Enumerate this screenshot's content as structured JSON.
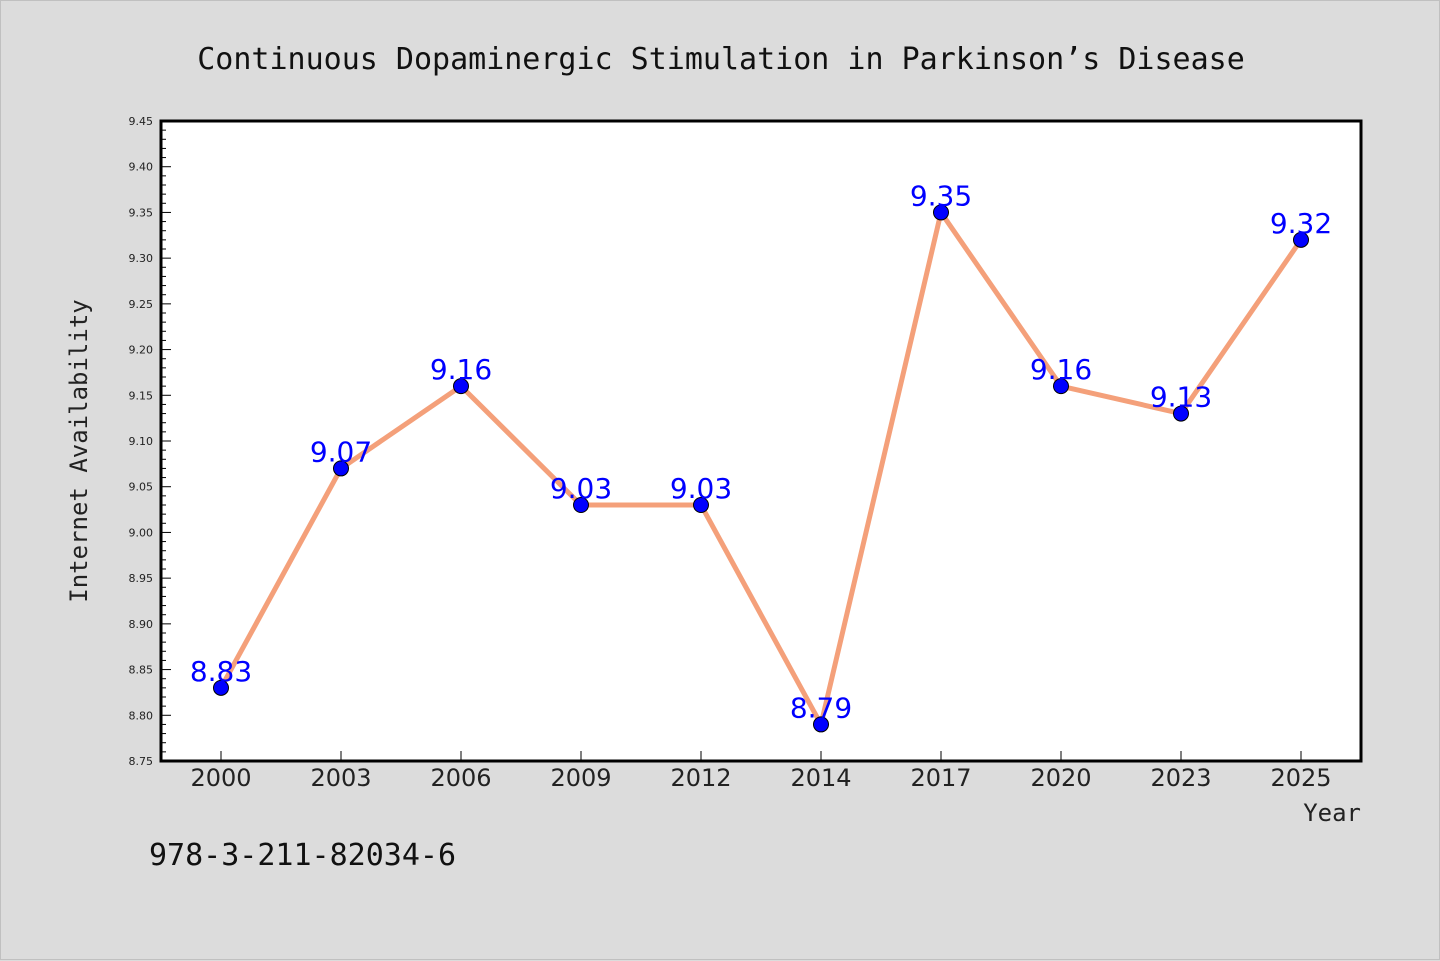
{
  "chart_data": {
    "type": "line",
    "title": "Continuous Dopaminergic Stimulation in Parkinson’s Disease",
    "xlabel": "Year",
    "ylabel": "Internet Availability",
    "categories": [
      "2000",
      "2003",
      "2006",
      "2009",
      "2012",
      "2014",
      "2017",
      "2020",
      "2023",
      "2025"
    ],
    "series": [
      {
        "values": [
          8.83,
          9.07,
          9.16,
          9.03,
          9.03,
          8.79,
          9.35,
          9.16,
          9.13,
          9.32
        ],
        "data_labels": [
          "8.83",
          "9.07",
          "9.16",
          "9.03",
          "9.03",
          "8.79",
          "9.35",
          "9.16",
          "9.13",
          "9.32"
        ],
        "line_color": "#f4a07a",
        "marker_color": "#0000ff",
        "label_color": "#0000ff"
      }
    ],
    "ylim": [
      8.75,
      9.45
    ],
    "yticks": [
      "8.75",
      "8.80",
      "8.85",
      "8.90",
      "8.95",
      "9.00",
      "9.05",
      "9.10",
      "9.15",
      "9.20",
      "9.25",
      "9.30",
      "9.35",
      "9.40",
      "9.45"
    ],
    "grid": false,
    "legend": "none"
  },
  "annotation": {
    "isbn": "978-3-211-82034-6"
  },
  "colors": {
    "background": "#dcdcdc",
    "plot_area": "#ffffff",
    "axis": "#000000"
  }
}
